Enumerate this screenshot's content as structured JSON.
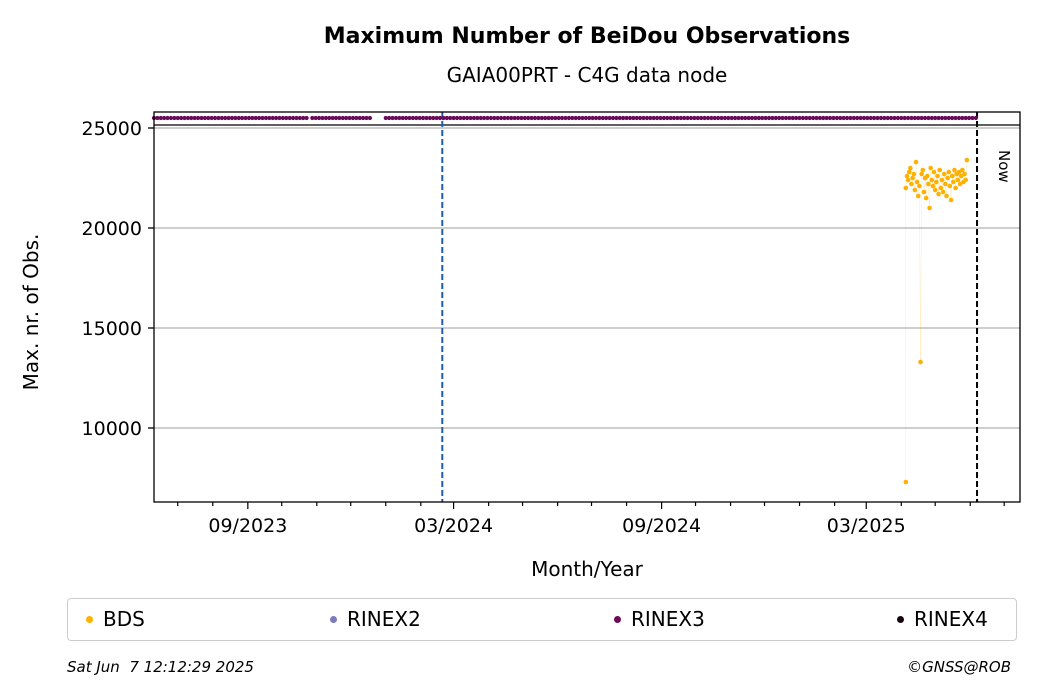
{
  "chart_data": {
    "type": "scatter",
    "title": "Maximum Number of BeiDou Observations",
    "subtitle": "GAIA00PRT - C4G data node",
    "xlabel": "Month/Year",
    "ylabel": "Max. nr. of Obs.",
    "x_ticks": [
      "09/2023",
      "03/2024",
      "09/2024",
      "03/2025"
    ],
    "y_ticks": [
      10000,
      15000,
      20000,
      25000
    ],
    "xlim": [
      "2023-06-10",
      "2025-07-15"
    ],
    "ylim": [
      6300,
      25800
    ],
    "grid": "horizontal",
    "now_label": "Now",
    "now_date": "2025-06-07",
    "vertical_marker_date": "2024-02-20",
    "reference_line": 25150,
    "series": [
      {
        "name": "BDS",
        "color": "#ffb000",
        "points": [
          [
            "2025-04-05",
            7300
          ],
          [
            "2025-04-05",
            22000
          ],
          [
            "2025-04-06",
            22600
          ],
          [
            "2025-04-07",
            22400
          ],
          [
            "2025-04-08",
            22800
          ],
          [
            "2025-04-09",
            23000
          ],
          [
            "2025-04-10",
            22200
          ],
          [
            "2025-04-11",
            22500
          ],
          [
            "2025-04-12",
            22700
          ],
          [
            "2025-04-13",
            21900
          ],
          [
            "2025-04-14",
            23300
          ],
          [
            "2025-04-15",
            22300
          ],
          [
            "2025-04-16",
            21600
          ],
          [
            "2025-04-17",
            22100
          ],
          [
            "2025-04-18",
            13300
          ],
          [
            "2025-04-19",
            22700
          ],
          [
            "2025-04-20",
            22900
          ],
          [
            "2025-04-21",
            21800
          ],
          [
            "2025-04-22",
            22500
          ],
          [
            "2025-04-23",
            21500
          ],
          [
            "2025-04-24",
            22600
          ],
          [
            "2025-04-25",
            22200
          ],
          [
            "2025-04-26",
            21000
          ],
          [
            "2025-04-27",
            23000
          ],
          [
            "2025-04-28",
            22400
          ],
          [
            "2025-04-29",
            22100
          ],
          [
            "2025-04-30",
            22800
          ],
          [
            "2025-05-01",
            21900
          ],
          [
            "2025-05-02",
            22300
          ],
          [
            "2025-05-03",
            22600
          ],
          [
            "2025-05-04",
            21700
          ],
          [
            "2025-05-05",
            22900
          ],
          [
            "2025-05-06",
            22000
          ],
          [
            "2025-05-07",
            22400
          ],
          [
            "2025-05-08",
            21800
          ],
          [
            "2025-05-09",
            22700
          ],
          [
            "2025-05-10",
            22200
          ],
          [
            "2025-05-11",
            21600
          ],
          [
            "2025-05-12",
            22500
          ],
          [
            "2025-05-13",
            22800
          ],
          [
            "2025-05-14",
            22100
          ],
          [
            "2025-05-15",
            21400
          ],
          [
            "2025-05-16",
            22600
          ],
          [
            "2025-05-17",
            22300
          ],
          [
            "2025-05-18",
            22900
          ],
          [
            "2025-05-19",
            22000
          ],
          [
            "2025-05-20",
            22700
          ],
          [
            "2025-05-21",
            22400
          ],
          [
            "2025-05-22",
            22800
          ],
          [
            "2025-05-23",
            22200
          ],
          [
            "2025-05-24",
            22600
          ],
          [
            "2025-05-25",
            22900
          ],
          [
            "2025-05-26",
            22300
          ],
          [
            "2025-05-27",
            22700
          ],
          [
            "2025-05-28",
            22400
          ],
          [
            "2025-05-29",
            23400
          ]
        ]
      },
      {
        "name": "RINEX2",
        "color": "#7b7bbf",
        "points": []
      },
      {
        "name": "RINEX3",
        "color": "#6a0a5b",
        "value": 25500,
        "ranges": [
          [
            "2023-06-10",
            "2023-10-25"
          ],
          [
            "2023-10-28",
            "2023-12-20"
          ],
          [
            "2024-01-01",
            "2024-11-20"
          ],
          [
            "2024-11-23",
            "2025-06-06"
          ]
        ]
      },
      {
        "name": "RINEX4",
        "color": "#1a0310",
        "points": []
      }
    ]
  },
  "legend": [
    {
      "label": "BDS",
      "color": "#ffb000"
    },
    {
      "label": "RINEX2",
      "color": "#7b7bbf"
    },
    {
      "label": "RINEX3",
      "color": "#6a0a5b"
    },
    {
      "label": "RINEX4",
      "color": "#1a0310"
    }
  ],
  "footer": {
    "timestamp": "Sat Jun  7 12:12:29 2025",
    "copyright": "©GNSS@ROB"
  }
}
